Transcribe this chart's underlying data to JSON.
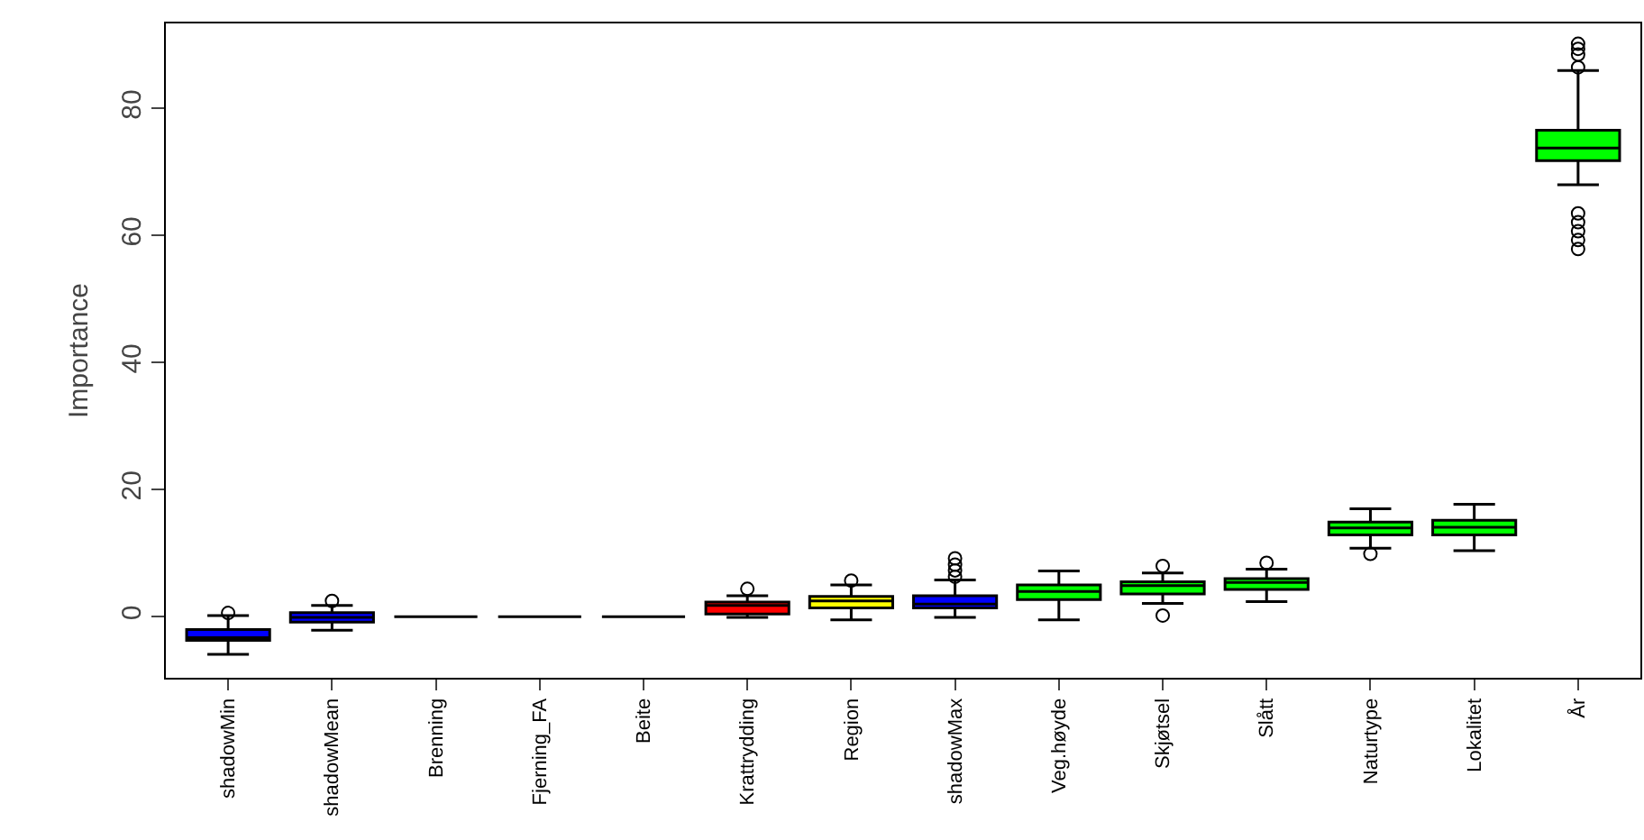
{
  "chart_data": {
    "type": "box",
    "ylabel": "Importance",
    "categories": [
      "shadowMin",
      "shadowMean",
      "Brenning",
      "Fjerning_FA",
      "Beite",
      "Krattrydding",
      "Region",
      "shadowMax",
      "Veg.høyde",
      "Skjøtsel",
      "Slått",
      "Naturtype",
      "Lokalitet",
      "År"
    ],
    "colors": [
      "#0000ff",
      "#0000ff",
      "#000000",
      "#000000",
      "#000000",
      "#ff0000",
      "#ffff00",
      "#0000ff",
      "#00ff00",
      "#00ff00",
      "#00ff00",
      "#00ff00",
      "#00ff00",
      "#00ff00"
    ],
    "boxes": [
      {
        "low": -5.9,
        "q1": -3.7,
        "median": -3.3,
        "q3": -2.0,
        "high": 0.2,
        "outliers": [
          0.6
        ]
      },
      {
        "low": -2.1,
        "q1": -0.85,
        "median": -0.1,
        "q3": 0.65,
        "high": 1.8,
        "outliers": [
          2.5
        ]
      },
      {
        "low": 0,
        "q1": 0,
        "median": 0,
        "q3": 0,
        "high": 0
      },
      {
        "low": 0,
        "q1": 0,
        "median": 0,
        "q3": 0,
        "high": 0
      },
      {
        "low": 0,
        "q1": 0,
        "median": 0,
        "q3": 0,
        "high": 0
      },
      {
        "low": -0.1,
        "q1": 0.45,
        "median": 1.8,
        "q3": 2.3,
        "high": 3.3,
        "outliers": [
          4.4
        ]
      },
      {
        "low": -0.5,
        "q1": 1.4,
        "median": 2.5,
        "q3": 3.2,
        "high": 5.0,
        "outliers": [
          5.7
        ]
      },
      {
        "low": -0.1,
        "q1": 1.4,
        "median": 2.0,
        "q3": 3.3,
        "high": 5.8,
        "outliers": [
          6.3,
          7.3,
          8.2,
          9.2
        ]
      },
      {
        "low": -0.5,
        "q1": 2.7,
        "median": 4.0,
        "q3": 5.0,
        "high": 7.2
      },
      {
        "low": 2.1,
        "q1": 3.6,
        "median": 4.9,
        "q3": 5.5,
        "high": 6.9,
        "outliers": [
          0.2,
          8.0
        ]
      },
      {
        "low": 2.4,
        "q1": 4.3,
        "median": 5.4,
        "q3": 6.0,
        "high": 7.5,
        "outliers": [
          8.5
        ]
      },
      {
        "low": 10.8,
        "q1": 12.9,
        "median": 14.0,
        "q3": 14.9,
        "high": 17.0,
        "outliers": [
          9.9
        ]
      },
      {
        "low": 10.4,
        "q1": 12.9,
        "median": 14.1,
        "q3": 15.2,
        "high": 17.7
      },
      {
        "low": 68.0,
        "q1": 71.8,
        "median": 73.8,
        "q3": 76.6,
        "high": 86.0,
        "outliers": [
          57.9,
          59.3,
          60.7,
          62.1,
          63.5,
          86.5,
          88.5,
          89.4,
          90.2
        ]
      }
    ],
    "ylim": [
      -9.6,
      93.4
    ],
    "yticks": [
      0,
      20,
      40,
      60,
      80
    ],
    "grid": false,
    "legend": false,
    "marker": "circle"
  }
}
